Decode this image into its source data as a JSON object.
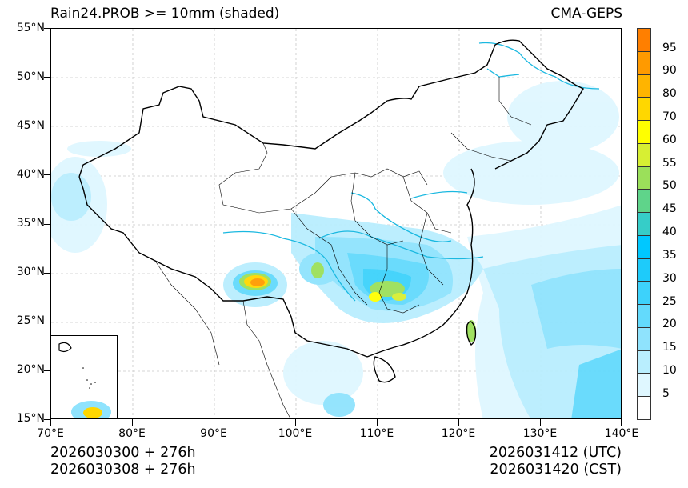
{
  "header": {
    "title": "Rain24.PROB >= 10mm (shaded)",
    "source": "CMA-GEPS"
  },
  "footer": {
    "init_utc": "2026030300 + 276h",
    "init_cst": "2026030308 + 276h",
    "valid_utc": "2026031412 (UTC)",
    "valid_cst": "2026031420 (CST)"
  },
  "map": {
    "extent": {
      "lon_min": 70,
      "lon_max": 140,
      "lat_min": 15,
      "lat_max": 55
    },
    "y_ticks": [
      "55°N",
      "50°N",
      "45°N",
      "40°N",
      "35°N",
      "30°N",
      "25°N",
      "20°N",
      "15°N"
    ],
    "x_ticks": [
      "70°E",
      "80°E",
      "90°E",
      "100°E",
      "110°E",
      "120°E",
      "130°E",
      "140°E"
    ],
    "gridlines": "dashed",
    "river_color": "#1ab8e0",
    "boundary_color": "#000000",
    "inset": "South China Sea islands"
  },
  "colorbar": {
    "labels": [
      "95",
      "90",
      "80",
      "70",
      "60",
      "55",
      "50",
      "45",
      "40",
      "35",
      "30",
      "25",
      "20",
      "15",
      "10",
      "5"
    ],
    "colors": [
      "#ff7f00",
      "#ff9a00",
      "#ffb400",
      "#ffd700",
      "#ffff00",
      "#d7ef33",
      "#9be05a",
      "#5fd48a",
      "#36cdc8",
      "#00c8ff",
      "#1ecbfa",
      "#3dd2fb",
      "#63dafc",
      "#8fe3fd",
      "#b9eefe",
      "#dff7ff",
      "#ffffff"
    ]
  }
}
